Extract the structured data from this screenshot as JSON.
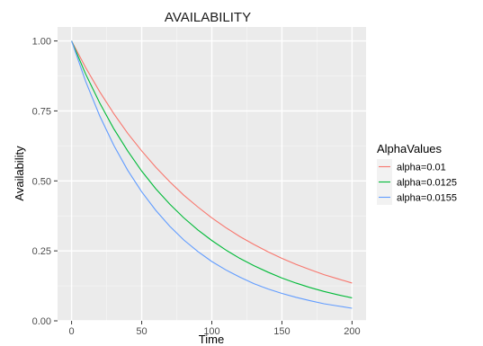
{
  "chart_data": {
    "type": "line",
    "title": "AVAILABILITY",
    "xlabel": "Time",
    "ylabel": "Availability",
    "xlim": [
      -10,
      210
    ],
    "ylim": [
      0,
      1.05
    ],
    "x_ticks": [
      0,
      50,
      100,
      150,
      200
    ],
    "x_tick_labels": [
      "0",
      "50",
      "100",
      "150",
      "200"
    ],
    "y_ticks": [
      0,
      0.25,
      0.5,
      0.75,
      1.0
    ],
    "y_tick_labels": [
      "0.00",
      "0.25",
      "0.50",
      "0.75",
      "1.00"
    ],
    "grid": true,
    "legend": {
      "title": "AlphaValues",
      "placement": "right"
    },
    "x": [
      0,
      10,
      20,
      30,
      40,
      50,
      60,
      70,
      80,
      90,
      100,
      110,
      120,
      130,
      140,
      150,
      160,
      170,
      180,
      190,
      200
    ],
    "series": [
      {
        "name": "alpha=0.01",
        "color": "#F8766D",
        "values": [
          1.0,
          0.905,
          0.819,
          0.741,
          0.67,
          0.607,
          0.549,
          0.497,
          0.449,
          0.407,
          0.368,
          0.333,
          0.301,
          0.273,
          0.247,
          0.223,
          0.202,
          0.183,
          0.165,
          0.15,
          0.135
        ]
      },
      {
        "name": "alpha=0.0125",
        "color": "#00BA38",
        "values": [
          1.0,
          0.882,
          0.779,
          0.687,
          0.607,
          0.535,
          0.472,
          0.417,
          0.368,
          0.325,
          0.287,
          0.253,
          0.223,
          0.197,
          0.174,
          0.153,
          0.135,
          0.119,
          0.105,
          0.093,
          0.082
        ]
      },
      {
        "name": "alpha=0.0155",
        "color": "#619CFF",
        "values": [
          1.0,
          0.856,
          0.733,
          0.628,
          0.538,
          0.461,
          0.395,
          0.338,
          0.289,
          0.248,
          0.212,
          0.182,
          0.156,
          0.133,
          0.114,
          0.098,
          0.084,
          0.072,
          0.061,
          0.053,
          0.045
        ]
      }
    ]
  }
}
